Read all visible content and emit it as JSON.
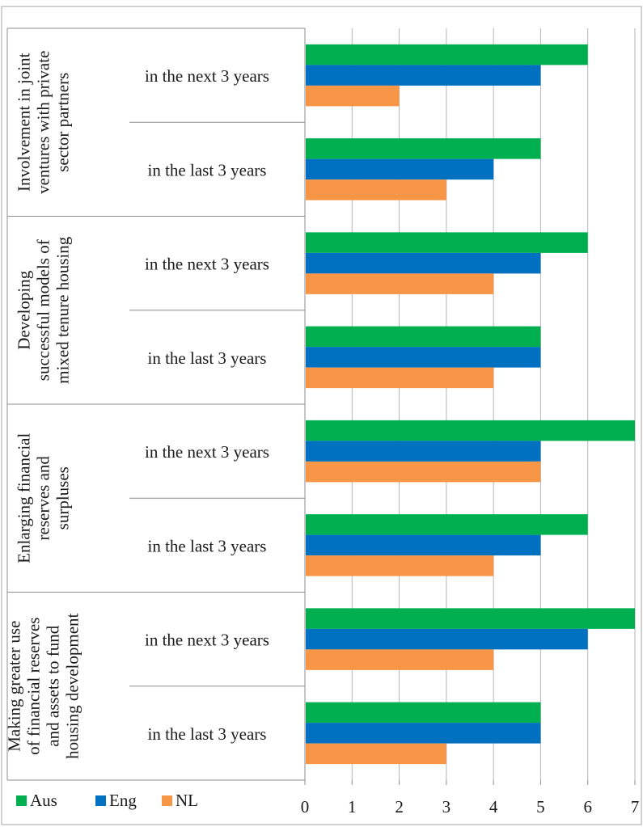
{
  "chart_data": {
    "type": "bar",
    "orientation": "horizontal",
    "xlim": [
      0,
      7
    ],
    "xticks": [
      "0",
      "1",
      "2",
      "3",
      "4",
      "5",
      "6",
      "7"
    ],
    "grid": true,
    "legend_position": "bottom-left",
    "groups": [
      {
        "label": "Involvement in joint ventures with private sector partners",
        "label_lines": [
          "Involvement in joint",
          "ventures with private",
          "sector partners"
        ],
        "subcategories": [
          "in the next 3 years",
          "in the last 3 years"
        ]
      },
      {
        "label": "Developing successful models of mixed tenure housing",
        "label_lines": [
          "Developing",
          "successful models of",
          "mixed tenure housing"
        ],
        "subcategories": [
          "in the next 3 years",
          "in the last 3 years"
        ]
      },
      {
        "label": "Enlarging financial reserves and surpluses",
        "label_lines": [
          "Enlarging financial",
          "reserves and",
          "surpluses"
        ],
        "subcategories": [
          "in the next 3 years",
          "in the last 3 years"
        ]
      },
      {
        "label": "Making greater use of financial reserves and assets to fund housing development",
        "label_lines": [
          "Making greater use",
          "of financial reserves",
          "and assets to fund",
          "housing development"
        ],
        "subcategories": [
          "in the next 3 years",
          "in the last 3 years"
        ]
      }
    ],
    "series": [
      {
        "name": "Aus",
        "color": "#00b050",
        "values": [
          6,
          5,
          6,
          5,
          7,
          6,
          7,
          5
        ]
      },
      {
        "name": "Eng",
        "color": "#0070c0",
        "values": [
          5,
          4,
          5,
          5,
          5,
          5,
          6,
          5
        ]
      },
      {
        "name": "NL",
        "color": "#f79646",
        "values": [
          2,
          3,
          4,
          4,
          5,
          4,
          4,
          3
        ]
      }
    ]
  }
}
